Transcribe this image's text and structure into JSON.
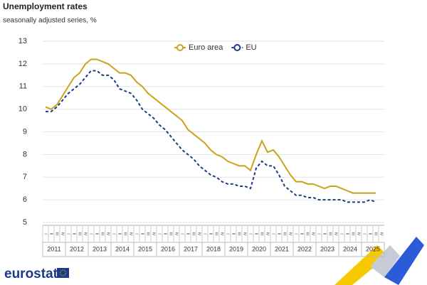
{
  "chart_data": {
    "type": "line",
    "title": "Unemployment rates",
    "subtitle": "seasonally adjusted series, %",
    "categories": [
      "I",
      "II",
      "III",
      "IV",
      "I",
      "II",
      "III",
      "IV",
      "I",
      "II",
      "III",
      "IV",
      "I",
      "II",
      "III",
      "IV",
      "I",
      "II",
      "III",
      "IV",
      "I",
      "II",
      "III",
      "IV",
      "I",
      "II",
      "III",
      "IV",
      "I",
      "II",
      "III",
      "IV",
      "I",
      "II",
      "III",
      "IV",
      "I",
      "II",
      "III",
      "IV",
      "I",
      "II",
      "III",
      "IV",
      "I",
      "II",
      "III",
      "IV",
      "I",
      "II",
      "III",
      "IV",
      "I",
      "II",
      "III",
      "IV",
      "I",
      "II",
      "III",
      "IV"
    ],
    "year_groups": [
      "2011",
      "2012",
      "2013",
      "2014",
      "2015",
      "2016",
      "2017",
      "2018",
      "2019",
      "2020",
      "2021",
      "2022",
      "2023",
      "2024",
      "2025"
    ],
    "series": [
      {
        "name": "Euro area",
        "color": "#c9a31a",
        "dash": false,
        "values": [
          10.1,
          10.0,
          10.2,
          10.6,
          11.0,
          11.4,
          11.6,
          12.0,
          12.2,
          12.2,
          12.1,
          12.0,
          11.8,
          11.6,
          11.6,
          11.5,
          11.2,
          11.0,
          10.7,
          10.5,
          10.3,
          10.1,
          9.9,
          9.7,
          9.5,
          9.1,
          8.9,
          8.7,
          8.5,
          8.2,
          8.0,
          7.9,
          7.7,
          7.6,
          7.5,
          7.5,
          7.3,
          8.0,
          8.6,
          8.1,
          8.2,
          7.9,
          7.5,
          7.1,
          6.8,
          6.8,
          6.7,
          6.7,
          6.6,
          6.5,
          6.6,
          6.6,
          6.5,
          6.4,
          6.3,
          6.3,
          6.3,
          6.3,
          6.3,
          null
        ]
      },
      {
        "name": "EU",
        "color": "#1c3a86",
        "dash": true,
        "values": [
          9.9,
          9.9,
          10.1,
          10.4,
          10.7,
          10.9,
          11.1,
          11.4,
          11.7,
          11.7,
          11.5,
          11.5,
          11.3,
          10.9,
          10.8,
          10.7,
          10.4,
          10.0,
          9.8,
          9.6,
          9.3,
          9.1,
          8.8,
          8.5,
          8.2,
          8.0,
          7.8,
          7.5,
          7.3,
          7.1,
          7.0,
          6.8,
          6.7,
          6.7,
          6.6,
          6.6,
          6.5,
          7.4,
          7.7,
          7.5,
          7.5,
          7.1,
          6.6,
          6.4,
          6.2,
          6.2,
          6.1,
          6.1,
          6.0,
          6.0,
          6.0,
          6.0,
          6.0,
          5.9,
          5.9,
          5.9,
          5.9,
          6.0,
          5.9,
          null
        ]
      }
    ],
    "ylim": [
      5,
      13
    ],
    "yticks": [
      5,
      6,
      7,
      8,
      9,
      10,
      11,
      12,
      13
    ],
    "grid": true,
    "legend": "top",
    "logo": "eurostat"
  }
}
